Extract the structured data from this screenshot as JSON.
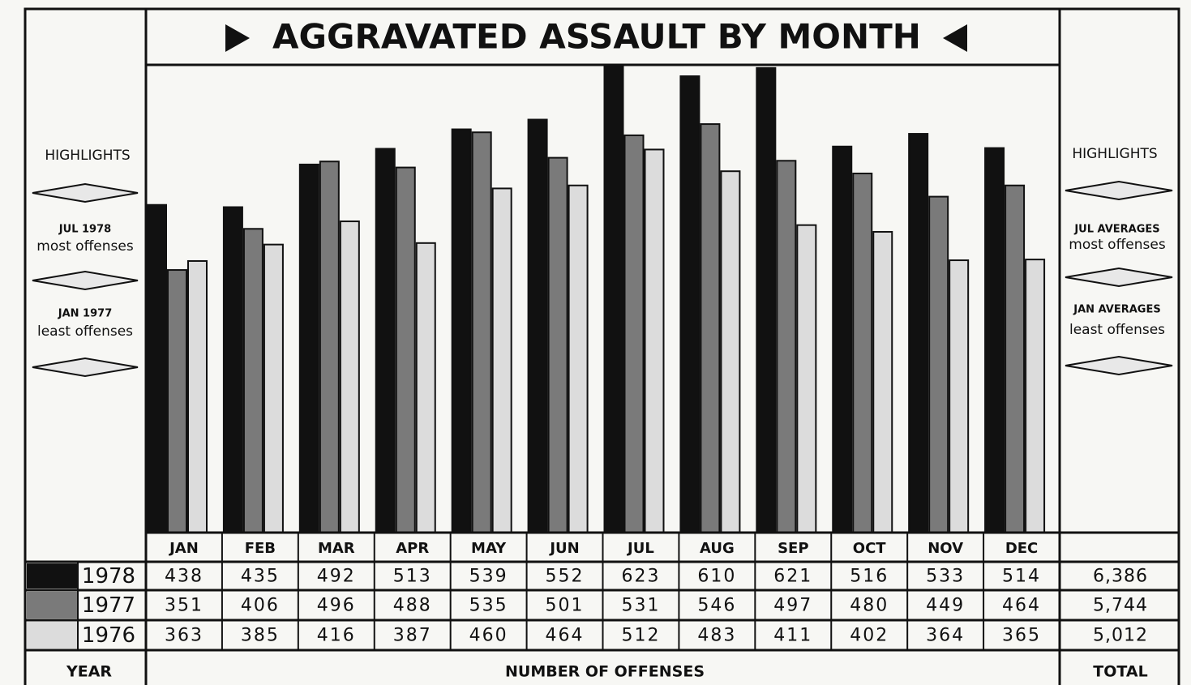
{
  "chart_data": {
    "type": "bar",
    "title": "AGGRAVATED ASSAULT BY MONTH",
    "categories": [
      "JAN",
      "FEB",
      "MAR",
      "APR",
      "MAY",
      "JUN",
      "JUL",
      "AUG",
      "SEP",
      "OCT",
      "NOV",
      "DEC"
    ],
    "series": [
      {
        "name": "1978",
        "color": "#111111",
        "values": [
          438,
          435,
          492,
          513,
          539,
          552,
          623,
          610,
          621,
          516,
          533,
          514
        ],
        "total": "6,386"
      },
      {
        "name": "1977",
        "color": "#7a7a7a",
        "values": [
          351,
          406,
          496,
          488,
          535,
          501,
          531,
          546,
          497,
          480,
          449,
          464
        ],
        "total": "5,744"
      },
      {
        "name": "1976",
        "color": "#dcdcdc",
        "values": [
          363,
          385,
          416,
          387,
          460,
          464,
          512,
          483,
          411,
          402,
          364,
          365
        ],
        "total": "5,012"
      }
    ],
    "left_highlights": {
      "heading": "HIGHLIGHTS",
      "most_label": "JUL 1978",
      "most_text": "most offenses",
      "least_label": "JAN 1977",
      "least_text": "least offenses"
    },
    "right_highlights": {
      "heading": "HIGHLIGHTS",
      "most_label": "JUL AVERAGES",
      "most_text": "most offenses",
      "least_label": "JAN AVERAGES",
      "least_text": "least offenses"
    },
    "year_label": "YEAR",
    "x_label": "NUMBER OF OFFENSES",
    "total_label": "TOTAL"
  }
}
